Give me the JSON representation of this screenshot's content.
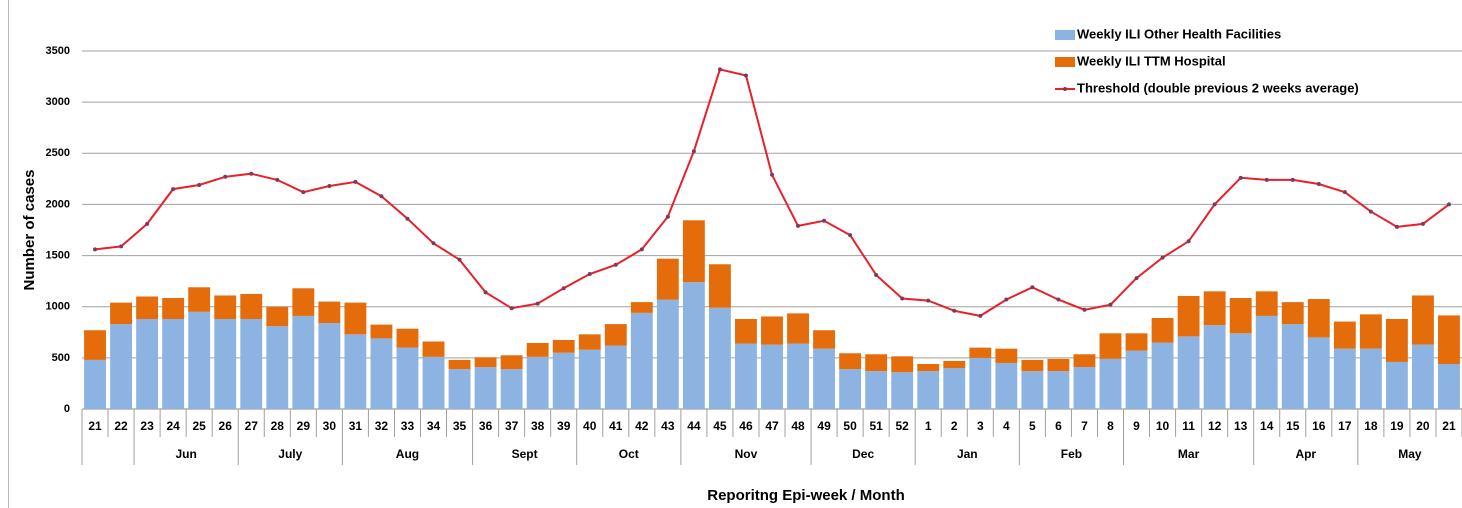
{
  "chart_data": {
    "type": "stacked-bar-line",
    "y_label": "Number of cases",
    "x_label": "Reporitng Epi-week / Month",
    "categories": [
      "21",
      "22",
      "23",
      "24",
      "25",
      "26",
      "27",
      "28",
      "29",
      "30",
      "31",
      "32",
      "33",
      "34",
      "35",
      "36",
      "37",
      "38",
      "39",
      "40",
      "41",
      "42",
      "43",
      "44",
      "45",
      "46",
      "47",
      "48",
      "49",
      "50",
      "51",
      "52",
      "1",
      "2",
      "3",
      "4",
      "5",
      "6",
      "7",
      "8",
      "9",
      "10",
      "11",
      "12",
      "13",
      "14",
      "15",
      "16",
      "17",
      "18",
      "19",
      "20",
      "21"
    ],
    "months": [
      null,
      null,
      "Jun",
      "Jun",
      "Jun",
      "Jun",
      "July",
      "July",
      "July",
      "July",
      "Aug",
      "Aug",
      "Aug",
      "Aug",
      "Aug",
      "Sept",
      "Sept",
      "Sept",
      "Sept",
      "Oct",
      "Oct",
      "Oct",
      "Oct",
      "Nov",
      "Nov",
      "Nov",
      "Nov",
      "Nov",
      "Dec",
      "Dec",
      "Dec",
      "Dec",
      "Jan",
      "Jan",
      "Jan",
      "Jan",
      "Feb",
      "Feb",
      "Feb",
      "Feb",
      "Mar",
      "Mar",
      "Mar",
      "Mar",
      "Mar",
      "Apr",
      "Apr",
      "Apr",
      "Apr",
      "May",
      "May",
      "May",
      "May"
    ],
    "series": [
      {
        "name": "Weekly ILI Other Health Facilities",
        "kind": "bar",
        "color": "#8db3e2",
        "values": [
          480,
          830,
          880,
          880,
          950,
          880,
          880,
          810,
          910,
          840,
          730,
          690,
          600,
          510,
          390,
          410,
          390,
          510,
          550,
          580,
          620,
          940,
          1070,
          1240,
          990,
          640,
          630,
          640,
          590,
          390,
          370,
          360,
          370,
          400,
          500,
          450,
          370,
          370,
          410,
          490,
          570,
          650,
          710,
          820,
          740,
          910,
          830,
          700,
          590,
          590,
          460,
          630,
          440
        ]
      },
      {
        "name": "Weekly ILI TTM Hospital",
        "kind": "bar",
        "color": "#e46c0a",
        "values": [
          290,
          210,
          220,
          205,
          240,
          230,
          245,
          190,
          270,
          210,
          310,
          135,
          185,
          150,
          90,
          95,
          135,
          135,
          125,
          150,
          210,
          105,
          400,
          605,
          425,
          240,
          275,
          295,
          180,
          155,
          165,
          155,
          70,
          70,
          100,
          140,
          110,
          120,
          125,
          250,
          170,
          240,
          395,
          330,
          345,
          240,
          215,
          375,
          265,
          335,
          420,
          480,
          475
        ]
      },
      {
        "name": "Threshold (double previous 2 weeks average)",
        "kind": "line",
        "color": "#e8202a",
        "marker_color": "#7b3b5e",
        "values": [
          1560,
          1590,
          1810,
          2150,
          2190,
          2270,
          2300,
          2240,
          2120,
          2180,
          2220,
          2080,
          1860,
          1620,
          1460,
          1140,
          985,
          1030,
          1180,
          1320,
          1410,
          1560,
          1880,
          2520,
          3320,
          3260,
          2290,
          1790,
          1840,
          1700,
          1310,
          1080,
          1060,
          960,
          910,
          1070,
          1190,
          1070,
          970,
          1020,
          1280,
          1480,
          1640,
          2000,
          2260,
          2240,
          2240,
          2200,
          2120,
          1930,
          1780,
          1810,
          2000
        ]
      }
    ],
    "ylim": [
      0,
      3500
    ],
    "yticks": [
      0,
      500,
      1000,
      1500,
      2000,
      2500,
      3000,
      3500
    ],
    "grid": true,
    "legend": "top-right"
  }
}
